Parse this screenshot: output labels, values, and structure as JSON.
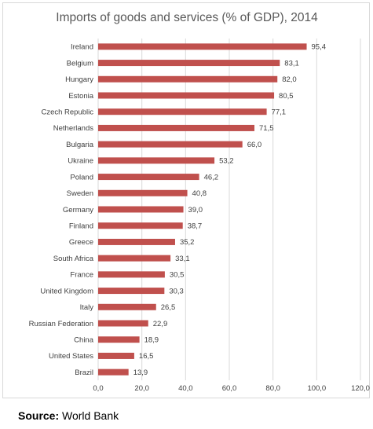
{
  "chart_data": {
    "type": "bar",
    "orientation": "horizontal",
    "title": "Imports of goods and services (% of GDP), 2014",
    "categories": [
      "Ireland",
      "Belgium",
      "Hungary",
      "Estonia",
      "Czech Republic",
      "Netherlands",
      "Bulgaria",
      "Ukraine",
      "Poland",
      "Sweden",
      "Germany",
      "Finland",
      "Greece",
      "South Africa",
      "France",
      "United Kingdom",
      "Italy",
      "Russian Federation",
      "China",
      "United States",
      "Brazil"
    ],
    "values": [
      95.4,
      83.1,
      82.0,
      80.5,
      77.1,
      71.5,
      66.0,
      53.2,
      46.2,
      40.8,
      39.0,
      38.7,
      35.2,
      33.1,
      30.5,
      30.3,
      26.5,
      22.9,
      18.9,
      16.5,
      13.9
    ],
    "data_labels": [
      "95,4",
      "83,1",
      "82,0",
      "80,5",
      "77,1",
      "71,5",
      "66,0",
      "53,2",
      "46,2",
      "40,8",
      "39,0",
      "38,7",
      "35,2",
      "33,1",
      "30,5",
      "30,3",
      "26,5",
      "22,9",
      "18,9",
      "16,5",
      "13,9"
    ],
    "x_ticks": [
      "0,0",
      "20,0",
      "40,0",
      "60,0",
      "80,0",
      "100,0",
      "120,0"
    ],
    "xlim": [
      0,
      120
    ],
    "grid": true,
    "legend": "none",
    "bar_color": "#c0504d",
    "grid_color": "#d9d9d9",
    "text_color": "#404040"
  },
  "source": {
    "label": "Source:",
    "text": "World Bank"
  }
}
